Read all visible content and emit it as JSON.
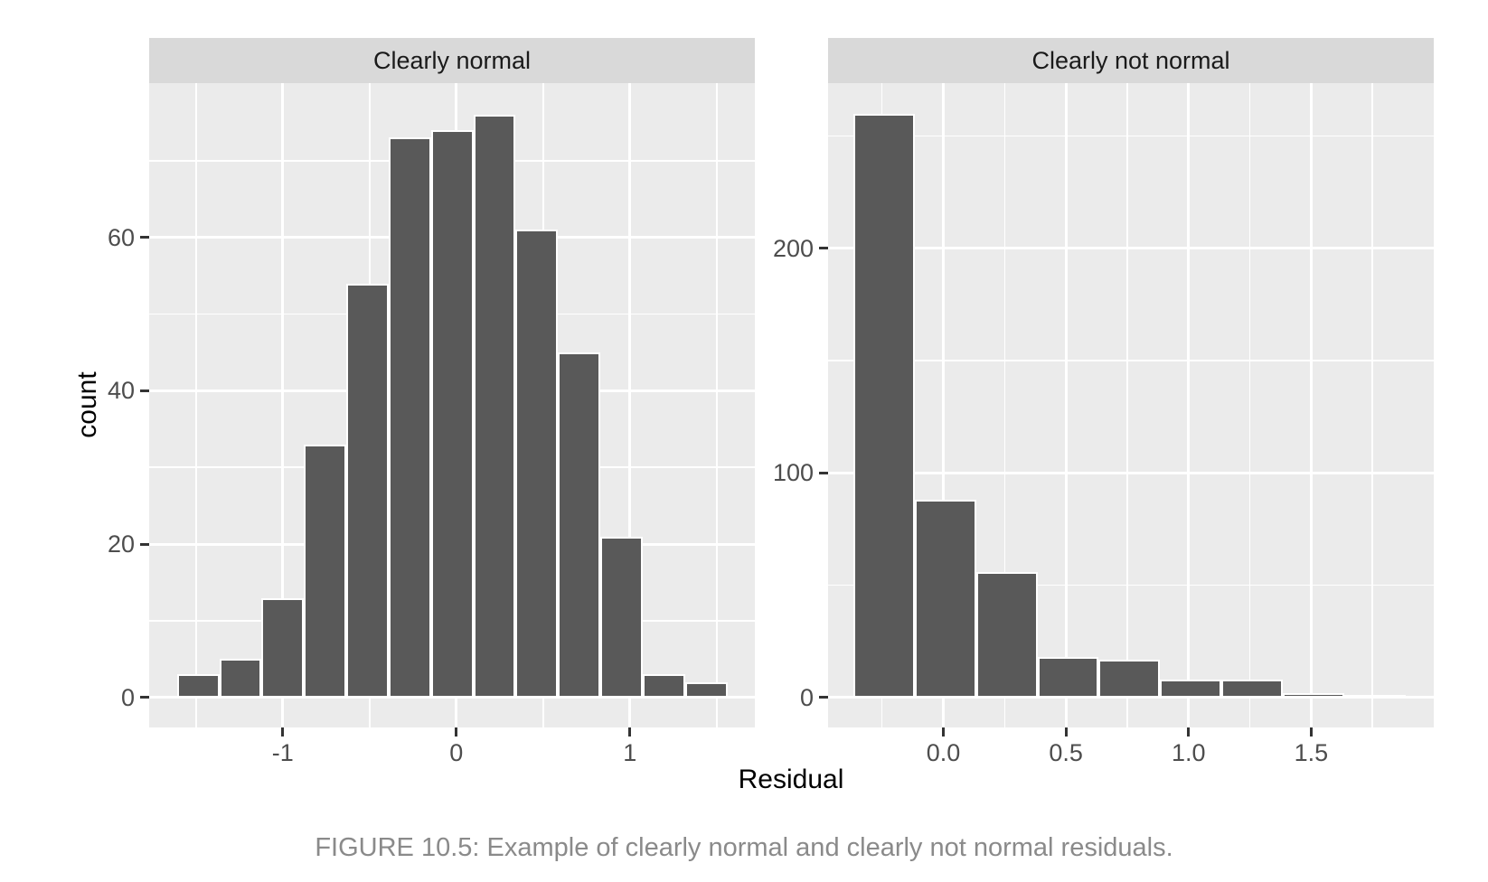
{
  "caption": "FIGURE 10.5: Example of clearly normal and clearly not normal residuals.",
  "colors": {
    "bar_fill": "#595959",
    "bar_border": "#ffffff",
    "panel_bg": "#ebebeb",
    "strip_bg": "#d9d9d9",
    "grid_major": "#ffffff",
    "grid_minor": "#ffffff",
    "axis_text": "#4d4d4d",
    "tick_mark": "#333333",
    "strip_text": "#1a1a1a",
    "axis_title": "#000000",
    "caption_text": "#8a8a8a"
  },
  "chart_data": {
    "type": "bar",
    "subtype": "faceted-histogram",
    "title": "",
    "xlabel": "Residual",
    "ylabel": "count",
    "grid": true,
    "legend": "none",
    "facets": [
      {
        "label": "Clearly normal",
        "bin_start": -1.61,
        "bin_width": 0.244,
        "counts": [
          3,
          5,
          13,
          33,
          54,
          73,
          74,
          76,
          61,
          45,
          21,
          3,
          2
        ],
        "xlim": [
          -1.77,
          1.72
        ],
        "ylim": [
          -3.9,
          80.1
        ],
        "x_major_ticks": [
          -1,
          0,
          1
        ],
        "x_tick_labels": [
          "-1",
          "0",
          "1"
        ],
        "x_minor_ticks": [
          -1.5,
          -0.5,
          0.5,
          1.5
        ],
        "y_major_ticks": [
          0,
          20,
          40,
          60
        ],
        "y_tick_labels": [
          "0",
          "20",
          "40",
          "60"
        ],
        "y_minor_ticks": [
          10,
          30,
          50,
          70
        ]
      },
      {
        "label": "Clearly not normal",
        "bin_start": -0.366,
        "bin_width": 0.25,
        "counts": [
          260,
          88,
          56,
          18,
          17,
          8,
          8,
          2,
          1
        ],
        "xlim": [
          -0.47,
          2.0
        ],
        "ylim": [
          -13.3,
          273.5
        ],
        "x_major_ticks": [
          0,
          0.5,
          1,
          1.5
        ],
        "x_tick_labels": [
          "0.0",
          "0.5",
          "1.0",
          "1.5"
        ],
        "x_minor_ticks": [
          -0.25,
          0.25,
          0.75,
          1.25,
          1.75
        ],
        "y_major_ticks": [
          0,
          100,
          200
        ],
        "y_tick_labels": [
          "0",
          "100",
          "200"
        ],
        "y_minor_ticks": [
          50,
          150,
          250
        ]
      }
    ]
  }
}
